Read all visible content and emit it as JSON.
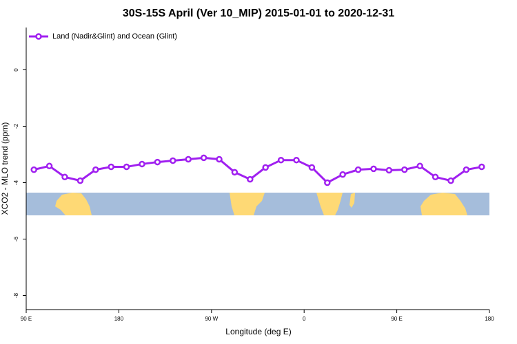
{
  "chart_data": {
    "type": "line",
    "title": "30S-15S April (Ver 10_MIP)   2015-01-01 to 2020-12-31",
    "x_label": "Longitude (deg E)",
    "y_label": "XCO2 - MLO trend (ppm)",
    "xlim": [
      90,
      540
    ],
    "xticks": [
      {
        "value": 90,
        "label": "90 E"
      },
      180,
      {
        "value": 270,
        "label": "90 W"
      },
      {
        "value": 360,
        "label": "0"
      },
      {
        "value": 450,
        "label": "90 E"
      },
      {
        "value": 540,
        "label": "180"
      }
    ],
    "ylim": [
      -8.5,
      1.5
    ],
    "yticks": [
      0,
      -2,
      -4,
      -6,
      -8
    ],
    "legend": "top-left",
    "x": [
      97.5,
      112.5,
      127.5,
      142.5,
      157.5,
      172.5,
      187.5,
      202.5,
      217.5,
      232.5,
      247.5,
      262.5,
      277.5,
      292.5,
      307.5,
      322.5,
      337.5,
      352.5,
      367.5,
      382.5,
      397.5,
      412.5,
      427.5,
      442.5,
      457.5,
      472.5,
      487.5,
      502.5,
      517.5,
      532.5
    ],
    "series": [
      {
        "name": "Land (Nadir&Glint) and Ocean (Glint)",
        "color": "#a020f0",
        "values": [
          -3.54,
          -3.41,
          -3.8,
          -3.93,
          -3.54,
          -3.44,
          -3.44,
          -3.34,
          -3.27,
          -3.22,
          -3.17,
          -3.12,
          -3.17,
          -3.63,
          -3.88,
          -3.46,
          -3.2,
          -3.2,
          -3.46,
          -4.0,
          -3.71,
          -3.54,
          -3.51,
          -3.56,
          -3.54,
          -3.41,
          -3.8,
          -3.93,
          -3.54,
          -3.44
        ]
      }
    ]
  }
}
